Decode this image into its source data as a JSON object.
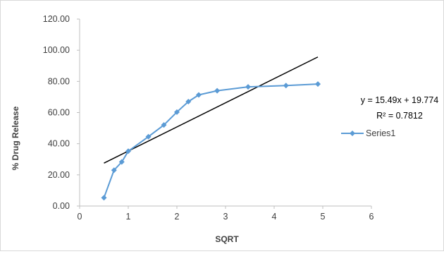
{
  "chart_data": {
    "type": "scatter",
    "xlabel": "SQRT",
    "ylabel": "% Drug Release",
    "xlim": [
      0,
      6
    ],
    "ylim": [
      0,
      120
    ],
    "x_ticks": [
      "0",
      "1",
      "2",
      "3",
      "4",
      "5",
      "6"
    ],
    "y_ticks": [
      "0.00",
      "20.00",
      "40.00",
      "60.00",
      "80.00",
      "100.00",
      "120.00"
    ],
    "grid": false,
    "legend_position": "right",
    "series": [
      {
        "name": "Series1",
        "color": "#5B9BD5",
        "marker": "diamond",
        "lines": true,
        "x": [
          0.5,
          0.707,
          0.866,
          1.0,
          1.414,
          1.732,
          2.0,
          2.236,
          2.449,
          2.828,
          3.464,
          4.243,
          4.899
        ],
        "y": [
          5.3,
          23.0,
          28.3,
          35.2,
          44.5,
          52.0,
          60.3,
          67.0,
          71.3,
          74.0,
          76.5,
          77.3,
          78.3
        ]
      }
    ],
    "trendline": {
      "type": "linear",
      "slope": 15.49,
      "intercept": 19.774,
      "x_range": [
        0.5,
        4.899
      ],
      "color": "#000000",
      "equation_label": "y = 15.49x + 19.774",
      "r2_label": "R² = 0.7812"
    }
  }
}
